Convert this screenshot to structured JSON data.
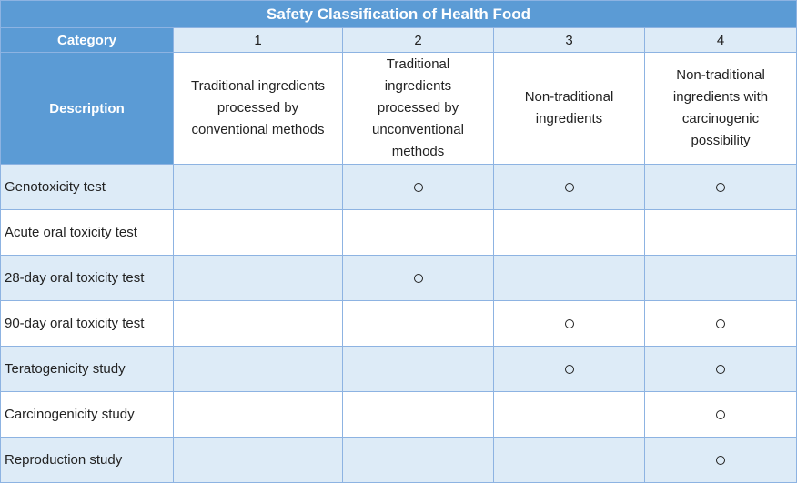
{
  "table": {
    "title": "Safety Classification of Health Food",
    "category_label": "Category",
    "description_label": "Description",
    "categories": [
      "1",
      "2",
      "3",
      "4"
    ],
    "descriptions": [
      "Traditional ingredients processed by conventional methods",
      "Traditional ingredients processed by unconventional methods",
      "Non-traditional ingredients",
      "Non-traditional ingredients with carcinogenic possibility"
    ],
    "mark_symbol": "circle",
    "rows": [
      {
        "label": "Genotoxicity test",
        "marks": [
          false,
          true,
          true,
          true
        ]
      },
      {
        "label": "Acute oral toxicity test",
        "marks": [
          false,
          false,
          false,
          false
        ]
      },
      {
        "label": "28-day oral toxicity test",
        "marks": [
          false,
          true,
          false,
          false
        ]
      },
      {
        "label": "90-day oral toxicity test",
        "marks": [
          false,
          false,
          true,
          true
        ]
      },
      {
        "label": "Teratogenicity study",
        "marks": [
          false,
          false,
          true,
          true
        ]
      },
      {
        "label": "Carcinogenicity study",
        "marks": [
          false,
          false,
          false,
          true
        ]
      },
      {
        "label": "Reproduction study",
        "marks": [
          false,
          false,
          false,
          true
        ]
      }
    ]
  },
  "colors": {
    "header_fill": "#5b9bd5",
    "band_fill": "#ddebf7",
    "grid_line": "#8db3e2",
    "text": "#222222"
  }
}
